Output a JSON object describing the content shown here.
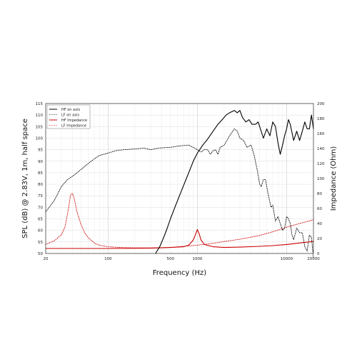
{
  "chart_data": {
    "type": "line",
    "xlabel": "Frequency (Hz)",
    "ylabel_left": "SPL (dB) @ 2.83V, 1m, half space",
    "ylabel_right": "Impedance (Ohm)",
    "x_scale": "log",
    "xlim": [
      20,
      20000
    ],
    "ylim_left": [
      50,
      115
    ],
    "ylim_right": [
      0,
      200
    ],
    "x_ticks": [
      20,
      100,
      500,
      1000,
      10000,
      20000
    ],
    "x_tick_labels": [
      "20",
      "100",
      "500",
      "1000",
      "10000",
      "20000"
    ],
    "y_ticks_left": [
      50,
      55,
      60,
      65,
      70,
      75,
      80,
      85,
      90,
      95,
      100,
      105,
      110,
      115
    ],
    "y_ticks_right": [
      0,
      20,
      40,
      60,
      80,
      100,
      120,
      140,
      160,
      180,
      200
    ],
    "grid": true,
    "legend_position": "top-left",
    "series": [
      {
        "name": "HF on axis",
        "axis": "left",
        "color": "#000000",
        "style": "solid",
        "points": [
          [
            340,
            50
          ],
          [
            380,
            53
          ],
          [
            420,
            57
          ],
          [
            460,
            61
          ],
          [
            500,
            65
          ],
          [
            560,
            70
          ],
          [
            630,
            75
          ],
          [
            710,
            80
          ],
          [
            800,
            85
          ],
          [
            900,
            90
          ],
          [
            1000,
            93.5
          ],
          [
            1150,
            97
          ],
          [
            1300,
            99.5
          ],
          [
            1500,
            103
          ],
          [
            1700,
            106
          ],
          [
            1900,
            108
          ],
          [
            2100,
            110
          ],
          [
            2300,
            111
          ],
          [
            2600,
            112
          ],
          [
            2800,
            111
          ],
          [
            3000,
            112
          ],
          [
            3200,
            109
          ],
          [
            3500,
            107
          ],
          [
            3800,
            108
          ],
          [
            4100,
            106
          ],
          [
            4500,
            106
          ],
          [
            4800,
            107
          ],
          [
            5000,
            105
          ],
          [
            5500,
            100
          ],
          [
            6000,
            104
          ],
          [
            6500,
            101
          ],
          [
            7000,
            107
          ],
          [
            7500,
            105
          ],
          [
            8000,
            98
          ],
          [
            8500,
            93
          ],
          [
            9000,
            97
          ],
          [
            9500,
            101
          ],
          [
            10000,
            104
          ],
          [
            10500,
            108
          ],
          [
            11000,
            106
          ],
          [
            12000,
            99
          ],
          [
            13000,
            103
          ],
          [
            14000,
            99
          ],
          [
            15000,
            103
          ],
          [
            16000,
            107
          ],
          [
            17000,
            104
          ],
          [
            18000,
            104
          ],
          [
            19000,
            110
          ],
          [
            20000,
            104
          ]
        ]
      },
      {
        "name": "LF on axis",
        "axis": "left",
        "color": "#000000",
        "style": "dotted",
        "points": [
          [
            20,
            68
          ],
          [
            25,
            73
          ],
          [
            30,
            79
          ],
          [
            35,
            82
          ],
          [
            40,
            83.5
          ],
          [
            45,
            85
          ],
          [
            50,
            86.5
          ],
          [
            60,
            89
          ],
          [
            70,
            91
          ],
          [
            80,
            92.5
          ],
          [
            100,
            93.5
          ],
          [
            120,
            94.5
          ],
          [
            150,
            95
          ],
          [
            200,
            95.3
          ],
          [
            250,
            95.7
          ],
          [
            300,
            95
          ],
          [
            350,
            95.5
          ],
          [
            400,
            95.8
          ],
          [
            500,
            96
          ],
          [
            600,
            96.5
          ],
          [
            700,
            96.8
          ],
          [
            800,
            97
          ],
          [
            900,
            96
          ],
          [
            1000,
            95
          ],
          [
            1100,
            94
          ],
          [
            1200,
            95
          ],
          [
            1300,
            95
          ],
          [
            1400,
            93
          ],
          [
            1500,
            94.5
          ],
          [
            1600,
            95
          ],
          [
            1700,
            93
          ],
          [
            1800,
            96
          ],
          [
            2000,
            97
          ],
          [
            2300,
            101
          ],
          [
            2600,
            104
          ],
          [
            2800,
            103
          ],
          [
            3000,
            100
          ],
          [
            3300,
            99
          ],
          [
            3600,
            96
          ],
          [
            4000,
            97
          ],
          [
            4300,
            93
          ],
          [
            4700,
            86
          ],
          [
            5000,
            80
          ],
          [
            5200,
            79
          ],
          [
            5500,
            82
          ],
          [
            5800,
            82
          ],
          [
            6200,
            76
          ],
          [
            6700,
            70
          ],
          [
            7000,
            71
          ],
          [
            7500,
            64
          ],
          [
            8000,
            66
          ],
          [
            8500,
            63
          ],
          [
            9000,
            60
          ],
          [
            9500,
            61
          ],
          [
            10000,
            66
          ],
          [
            10500,
            65
          ],
          [
            11000,
            63
          ],
          [
            11500,
            58
          ],
          [
            12000,
            56
          ],
          [
            13000,
            61
          ],
          [
            14000,
            59
          ],
          [
            15000,
            59
          ],
          [
            16000,
            53
          ],
          [
            17000,
            51
          ],
          [
            18000,
            58
          ],
          [
            19000,
            57
          ],
          [
            20000,
            48
          ]
        ]
      },
      {
        "name": "HF Impedance",
        "axis": "right",
        "color": "#cc0000",
        "style": "solid",
        "points": [
          [
            20,
            6.7
          ],
          [
            100,
            6.7
          ],
          [
            300,
            7
          ],
          [
            500,
            8
          ],
          [
            700,
            9
          ],
          [
            800,
            11
          ],
          [
            900,
            18
          ],
          [
            950,
            25
          ],
          [
            1000,
            32
          ],
          [
            1050,
            26
          ],
          [
            1100,
            18
          ],
          [
            1200,
            12
          ],
          [
            1500,
            9
          ],
          [
            2000,
            8
          ],
          [
            3000,
            8.5
          ],
          [
            5000,
            9.5
          ],
          [
            7000,
            10.5
          ],
          [
            10000,
            12
          ],
          [
            14000,
            14
          ],
          [
            20000,
            16
          ]
        ]
      },
      {
        "name": "LF Impedance",
        "axis": "right",
        "color": "#cc0000",
        "style": "dotted",
        "points": [
          [
            20,
            12
          ],
          [
            25,
            17
          ],
          [
            30,
            25
          ],
          [
            33,
            36
          ],
          [
            36,
            60
          ],
          [
            38,
            78
          ],
          [
            40,
            80
          ],
          [
            42,
            72
          ],
          [
            45,
            55
          ],
          [
            50,
            38
          ],
          [
            55,
            27
          ],
          [
            60,
            21
          ],
          [
            70,
            14
          ],
          [
            80,
            11
          ],
          [
            100,
            9
          ],
          [
            150,
            7.8
          ],
          [
            200,
            7.5
          ],
          [
            300,
            7.5
          ],
          [
            500,
            8
          ],
          [
            700,
            9.5
          ],
          [
            1000,
            11
          ],
          [
            1500,
            13.5
          ],
          [
            2000,
            16
          ],
          [
            3000,
            19
          ],
          [
            5000,
            24
          ],
          [
            7000,
            29
          ],
          [
            10000,
            35
          ],
          [
            14000,
            40
          ],
          [
            20000,
            45
          ]
        ]
      }
    ]
  }
}
